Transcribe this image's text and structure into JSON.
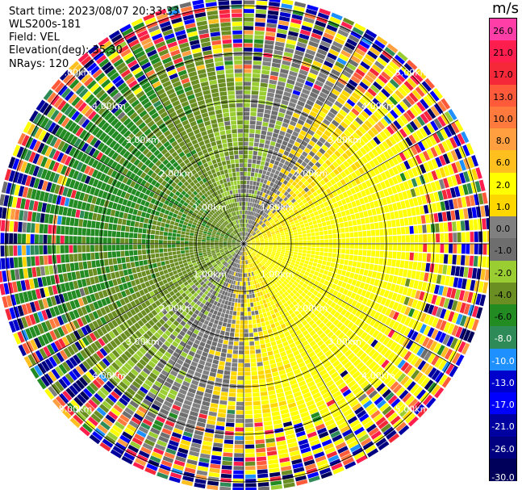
{
  "header": {
    "start_time": "Start time: 2023/08/07 20:33:33",
    "instrument": "WLS200s-181",
    "field": "Field: VEL",
    "elevation": "Elevation(deg): 35.30",
    "nrays": "NRays: 120"
  },
  "colorbar": {
    "unit": "m/s",
    "ticks": [
      "26.0",
      "21.0",
      "17.0",
      "13.0",
      "10.0",
      "8.0",
      "6.0",
      "2.0",
      "1.0",
      "0.0",
      "-1.0",
      "-2.0",
      "-4.0",
      "-6.0",
      "-8.0",
      "-10.0",
      "-13.0",
      "-17.0",
      "-21.0",
      "-26.0",
      "-30.0"
    ],
    "colors": [
      "#ff3fa7",
      "#ff1e4e",
      "#f5283a",
      "#ff5a3a",
      "#ff7a3c",
      "#ff9f3f",
      "#ffbf1f",
      "#ffff00",
      "#ffd700",
      "#808080",
      "#6e6e6e",
      "#9acd32",
      "#6b8e23",
      "#228b22",
      "#2e8b57",
      "#1e90ff",
      "#0000cd",
      "#0000ff",
      "#0000a0",
      "#000080",
      "#00005a"
    ]
  },
  "chart_data": {
    "type": "ppi",
    "title": "",
    "field": "VEL",
    "unit": "m/s",
    "nrays": 120,
    "elevation_deg": 35.3,
    "range_rings_km": [
      1.0,
      2.0,
      3.0,
      4.0,
      5.0
    ],
    "ring_labels": [
      "1.00km",
      "2.00km",
      "3.00km",
      "4.00km",
      "5.00km"
    ],
    "color_scale": {
      "bounds": [
        -30.0,
        -26.0,
        -21.0,
        -17.0,
        -13.0,
        -10.0,
        -8.0,
        -6.0,
        -4.0,
        -2.0,
        -1.0,
        0.0,
        1.0,
        2.0,
        6.0,
        8.0,
        10.0,
        13.0,
        17.0,
        21.0,
        26.0
      ],
      "colors": [
        "#00005a",
        "#000080",
        "#0000a0",
        "#0000ff",
        "#0000cd",
        "#1e90ff",
        "#2e8b57",
        "#228b22",
        "#6b8e23",
        "#9acd32",
        "#6e6e6e",
        "#808080",
        "#ffd700",
        "#ffff00",
        "#ffbf1f",
        "#ff9f3f",
        "#ff7a3c",
        "#ff5a3a",
        "#f5283a",
        "#ff1e4e",
        "#ff3fa7"
      ]
    },
    "velocity_pattern": {
      "positive_sector_deg_from_north": [
        20,
        200
      ],
      "negative_sector_deg_from_north": [
        200,
        380
      ],
      "near_range_speed_ms": 3,
      "noise_beyond_km": 5.0
    }
  }
}
